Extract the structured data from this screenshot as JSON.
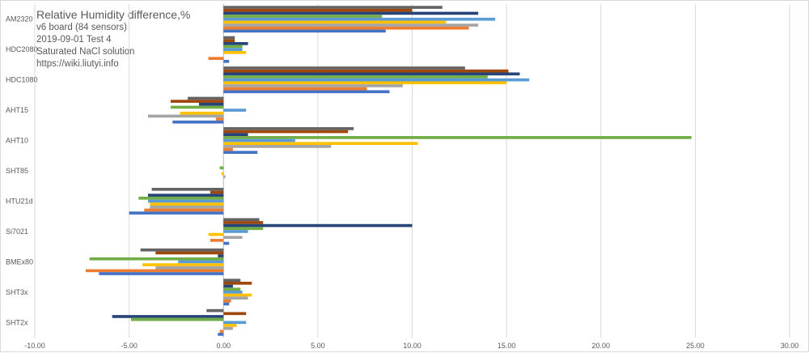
{
  "chart_data": {
    "type": "bar",
    "orientation": "horizontal",
    "title": "Relative Humidity difference,%",
    "subtitle_lines": [
      "v6 board (84 sensors)",
      "2019-09-01 Test 4",
      "Saturated NaCl solution",
      "https://wiki.liutyi.info"
    ],
    "categories": [
      "AM2320",
      "HDC2080",
      "HDC1080",
      "AHT15",
      "AHT10",
      "SHT85",
      "HTU21d",
      "Si7021",
      "BMEx80",
      "SHT3x",
      "SHT2x"
    ],
    "x_ticks": [
      "-10.00",
      "-5.00",
      "0.00",
      "5.00",
      "10.00",
      "15.00",
      "20.00",
      "25.00",
      "30.00"
    ],
    "xlim": [
      -10,
      30
    ],
    "grid": true,
    "legend": "none",
    "series_colors": [
      "#636363",
      "#9e480e",
      "#264478",
      "#70ad47",
      "#5b9bd5",
      "#ffc000",
      "#a5a5a5",
      "#ed7d31",
      "#4472c4"
    ],
    "values": [
      [
        11.6,
        10.0,
        13.5,
        8.4,
        14.4,
        11.8,
        13.5,
        13.0,
        8.6
      ],
      [
        0.6,
        0.6,
        1.3,
        1.0,
        1.0,
        1.2,
        0,
        -0.8,
        0.3
      ],
      [
        12.8,
        15.1,
        15.7,
        14.0,
        16.2,
        15.0,
        9.5,
        7.6,
        8.8
      ],
      [
        -1.9,
        -2.8,
        -1.3,
        -2.8,
        1.2,
        -2.3,
        -4.0,
        -0.4,
        -2.7
      ],
      [
        6.9,
        6.6,
        1.3,
        24.8,
        3.8,
        10.3,
        5.7,
        0.5,
        1.8
      ],
      [
        0,
        0,
        0,
        -0.2,
        0,
        -0.1,
        0.1,
        0,
        0
      ],
      [
        -3.8,
        -0.7,
        -4.0,
        -4.5,
        -4.0,
        -3.9,
        -3.9,
        -4.2,
        -5.0
      ],
      [
        1.9,
        2.1,
        10.0,
        2.1,
        1.3,
        -0.8,
        1.0,
        -0.7,
        0.3
      ],
      [
        -4.4,
        -3.6,
        -0.3,
        -7.1,
        -2.4,
        -4.3,
        -3.6,
        -7.3,
        -6.6
      ],
      [
        0.9,
        1.5,
        0.5,
        0.9,
        1.0,
        1.5,
        1.3,
        0.4,
        0.3
      ],
      [
        -0.9,
        1.2,
        -5.9,
        -4.9,
        1.2,
        0.7,
        0.5,
        -0.2,
        -0.3
      ]
    ]
  }
}
